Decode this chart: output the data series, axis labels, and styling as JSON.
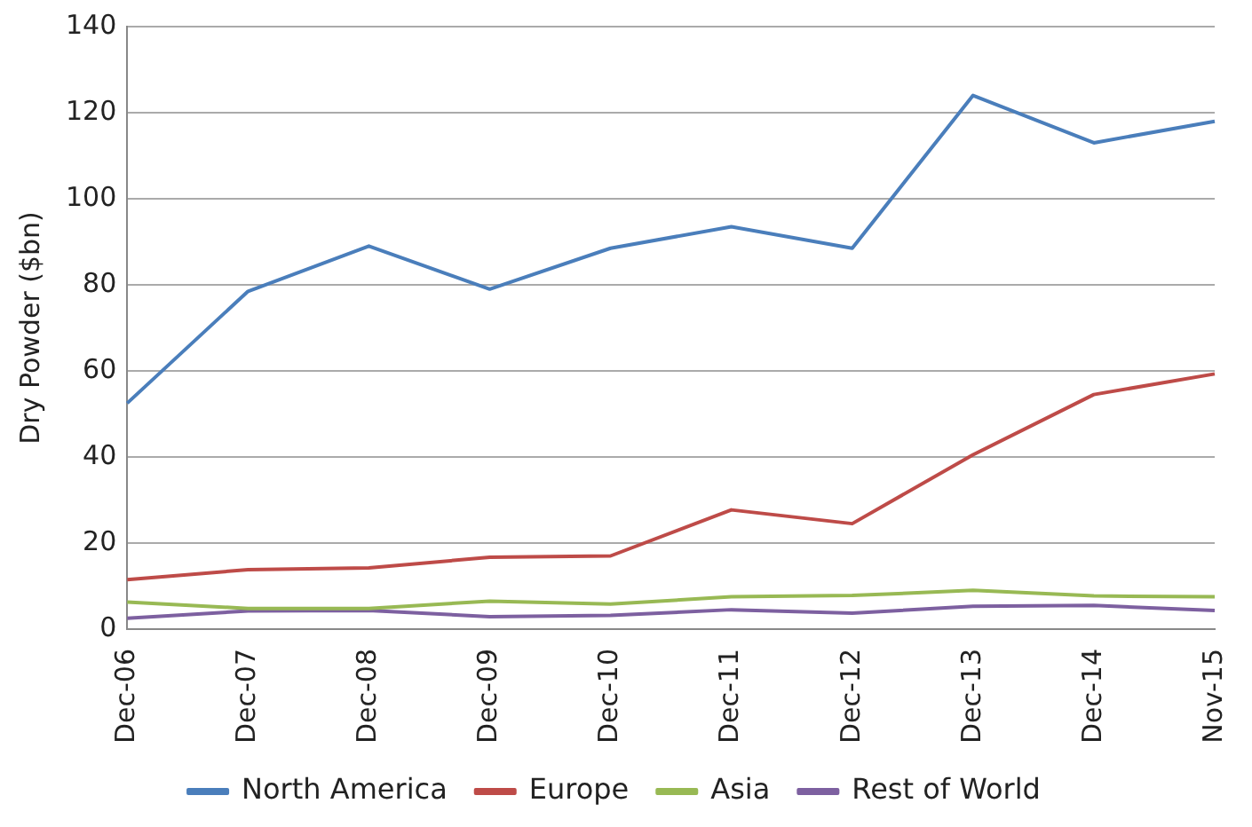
{
  "chart_data": {
    "type": "line",
    "ylabel": "Dry Powder ($bn)",
    "categories": [
      "Dec-06",
      "Dec-07",
      "Dec-08",
      "Dec-09",
      "Dec-10",
      "Dec-11",
      "Dec-12",
      "Dec-13",
      "Dec-14",
      "Nov-15"
    ],
    "series": [
      {
        "name": "North America",
        "color": "#4a7ebb",
        "values": [
          52.5,
          78.5,
          89,
          79,
          88.5,
          93.5,
          88.5,
          124,
          113,
          118
        ]
      },
      {
        "name": "Europe",
        "color": "#be4b48",
        "values": [
          11.5,
          13.8,
          14.2,
          16.7,
          17,
          27.7,
          24.5,
          40.5,
          54.5,
          59.3
        ]
      },
      {
        "name": "Asia",
        "color": "#98b954",
        "values": [
          6.3,
          4.8,
          4.8,
          6.5,
          5.8,
          7.5,
          7.8,
          9,
          7.7,
          7.5
        ]
      },
      {
        "name": "Rest of World",
        "color": "#7d60a0",
        "values": [
          2.5,
          4.2,
          4.3,
          2.9,
          3.2,
          4.5,
          3.7,
          5.3,
          5.5,
          4.3
        ]
      }
    ],
    "ylim": [
      0,
      140
    ],
    "yticks": [
      0,
      20,
      40,
      60,
      80,
      100,
      120,
      140
    ],
    "grid": "y",
    "legend": "bottom",
    "marker": "none",
    "line_style": "solid"
  }
}
